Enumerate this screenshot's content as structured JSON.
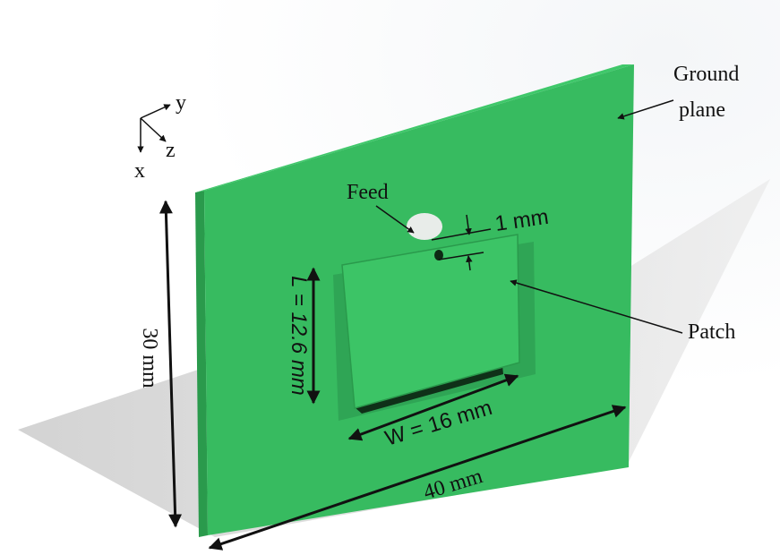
{
  "axes": {
    "x": "x",
    "y": "y",
    "z": "z"
  },
  "labels": {
    "ground_plane": [
      "Ground",
      "plane"
    ],
    "feed": "Feed",
    "patch": "Patch"
  },
  "dimensions": {
    "feed_offset": "1 mm",
    "patch_length": "L = 12.6 mm",
    "patch_width": "W = 16 mm",
    "ground_height": "30 mm",
    "ground_width": "40 mm"
  }
}
